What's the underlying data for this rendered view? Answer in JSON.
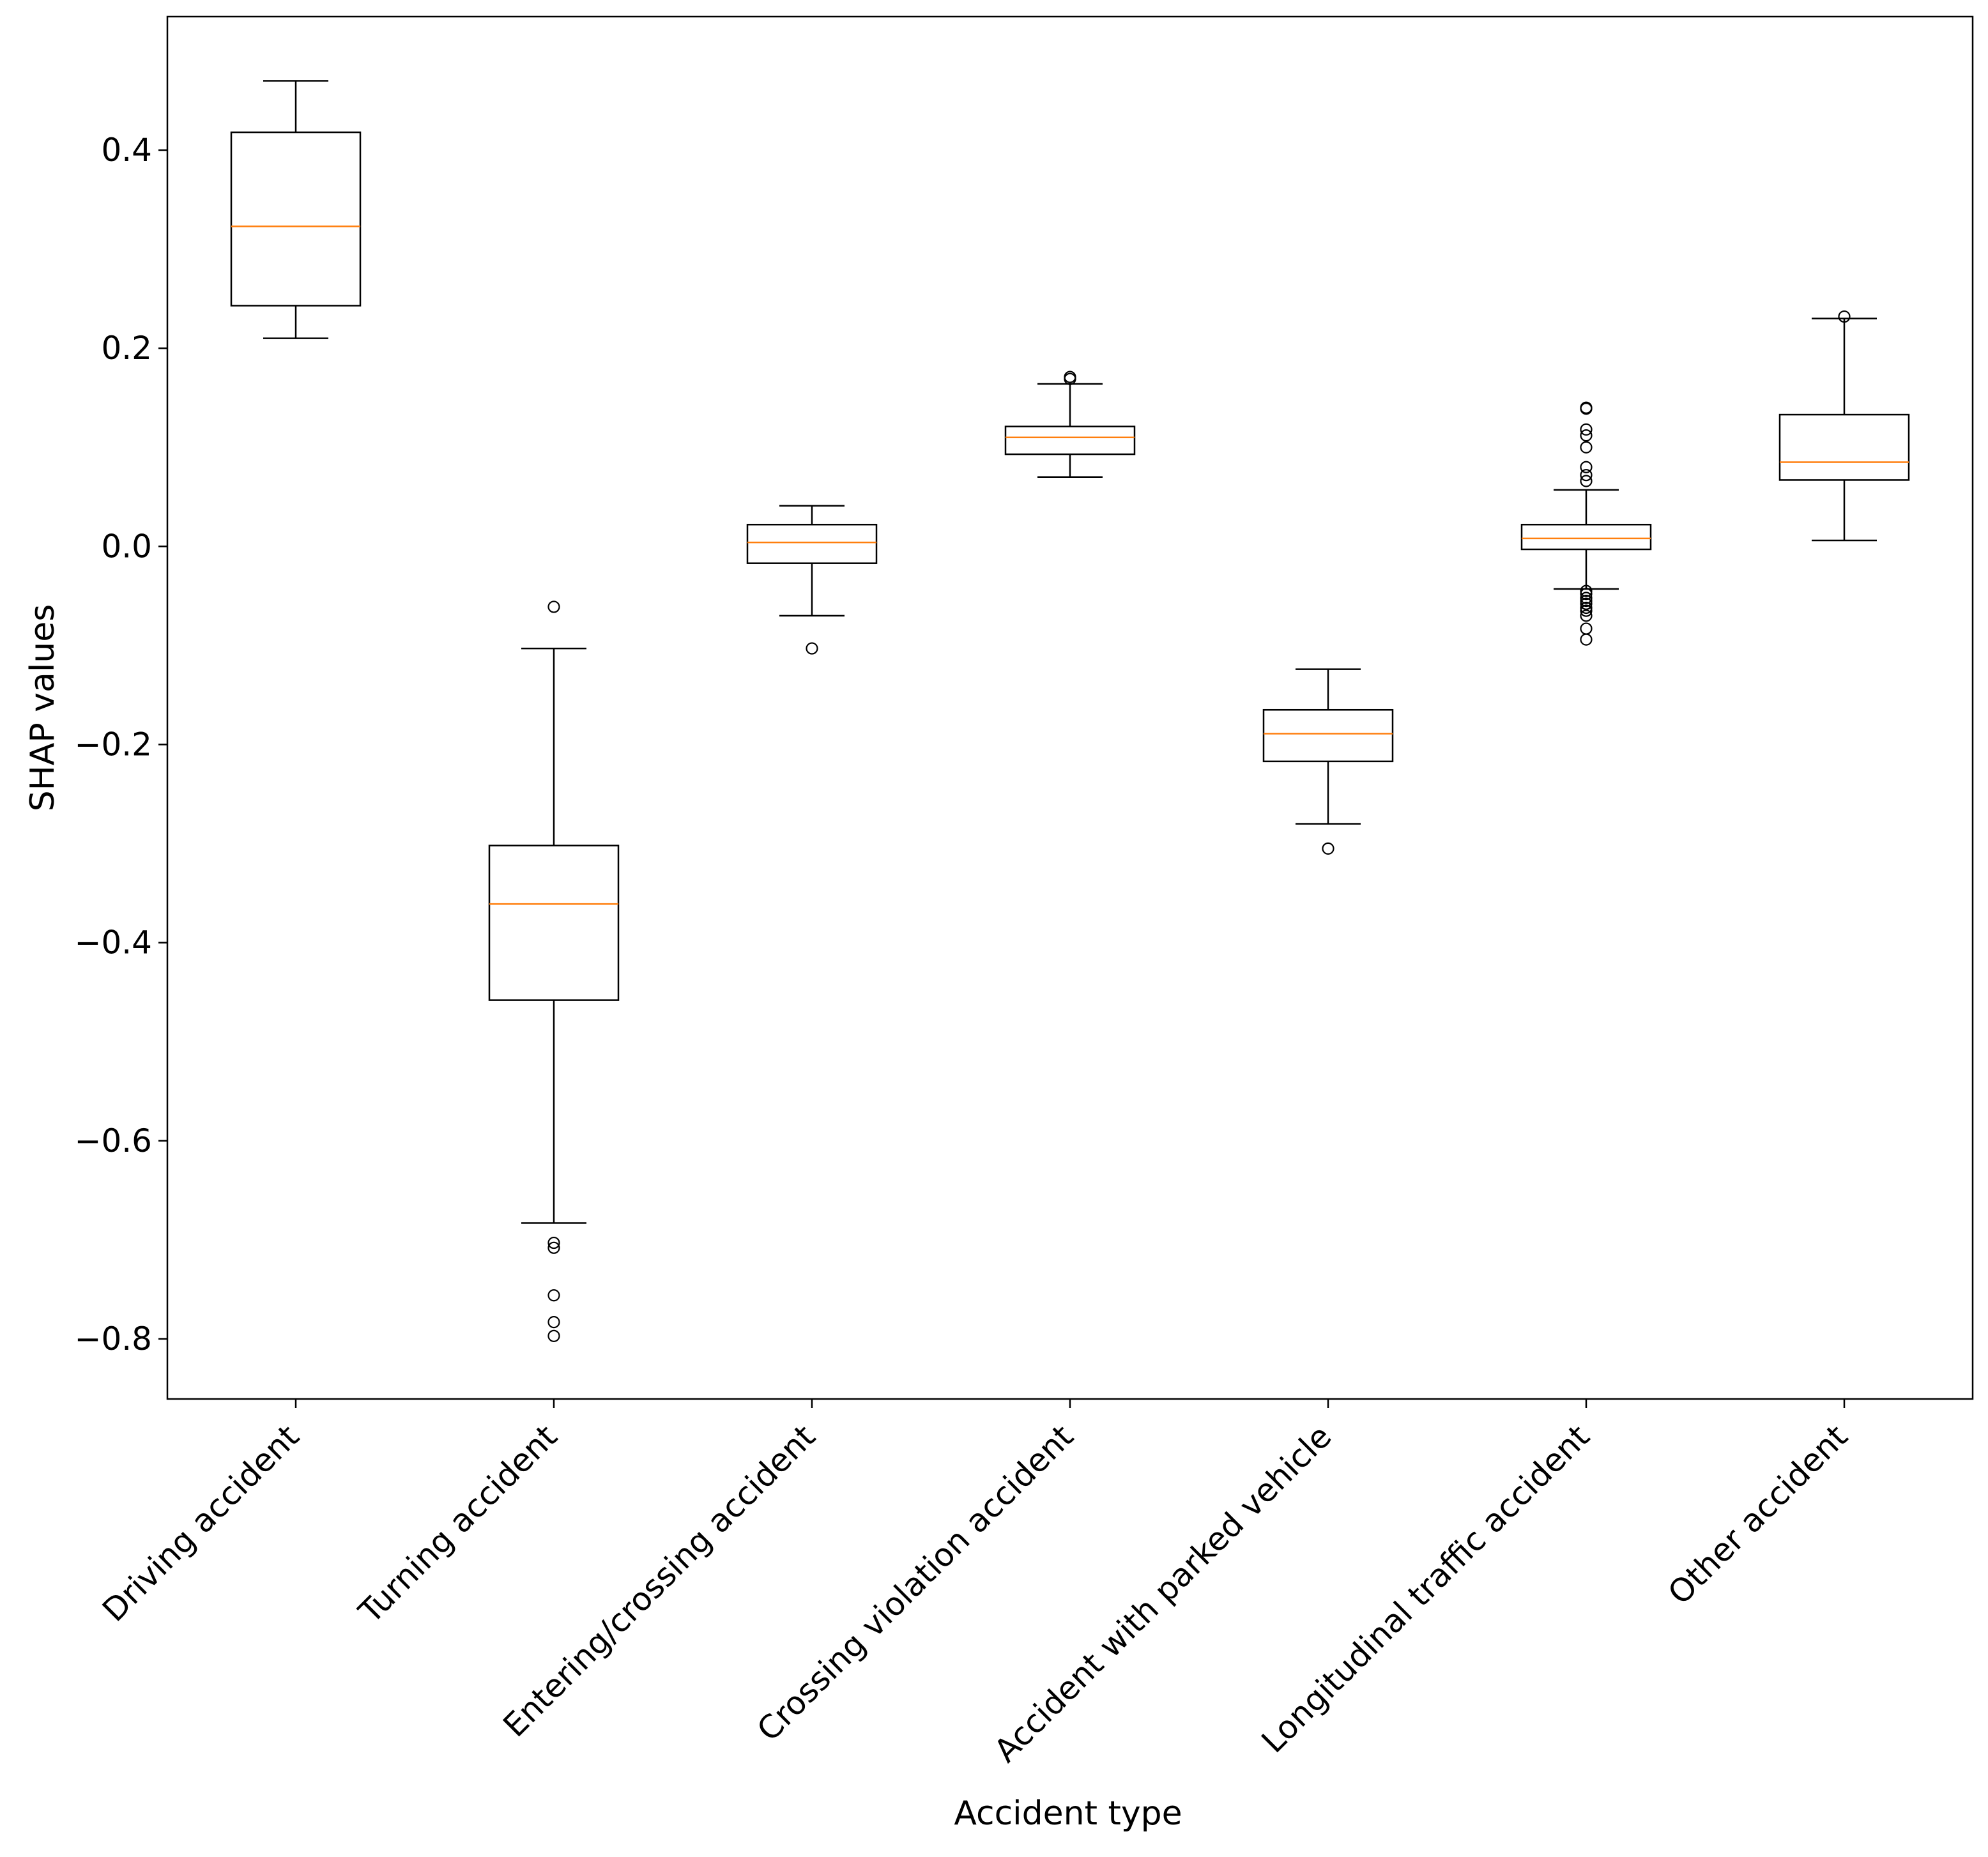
{
  "chart_data": {
    "type": "box",
    "title": "",
    "xlabel": "Accident type",
    "ylabel": "SHAP values",
    "ylim": [
      -0.86,
      0.54
    ],
    "yticks": [
      {
        "value": 0.4,
        "label": "0.4"
      },
      {
        "value": 0.2,
        "label": "0.2"
      },
      {
        "value": 0.0,
        "label": "0.0"
      },
      {
        "value": -0.2,
        "label": "−0.2"
      },
      {
        "value": -0.4,
        "label": "−0.4"
      },
      {
        "value": -0.6,
        "label": "−0.6"
      },
      {
        "value": -0.8,
        "label": "−0.8"
      }
    ],
    "grid": false,
    "colors": {
      "box": "#000000",
      "median": "#ff7f0e",
      "flier": "#000000"
    },
    "categories": [
      "Driving accident",
      "Turning accident",
      "Entering/crossing accident",
      "Crossing violation accident",
      "Accident with parked vehicle",
      "Longitudinal traffic accident",
      "Other accident"
    ],
    "boxes": [
      {
        "category": "Driving accident",
        "whisker_low": 0.21,
        "q1": 0.243,
        "median": 0.323,
        "q3": 0.418,
        "whisker_high": 0.47,
        "fliers": []
      },
      {
        "category": "Turning accident",
        "whisker_low": -0.683,
        "q1": -0.458,
        "median": -0.361,
        "q3": -0.302,
        "whisker_high": -0.103,
        "fliers": [
          -0.061,
          -0.703,
          -0.708,
          -0.756,
          -0.783,
          -0.797
        ]
      },
      {
        "category": "Entering/crossing accident",
        "whisker_low": -0.07,
        "q1": -0.017,
        "median": 0.004,
        "q3": 0.022,
        "whisker_high": 0.041,
        "fliers": [
          -0.103
        ]
      },
      {
        "category": "Crossing violation accident",
        "whisker_low": 0.07,
        "q1": 0.093,
        "median": 0.11,
        "q3": 0.121,
        "whisker_high": 0.164,
        "fliers": [
          0.169,
          0.171
        ]
      },
      {
        "category": "Accident with parked vehicle",
        "whisker_low": -0.28,
        "q1": -0.217,
        "median": -0.189,
        "q3": -0.165,
        "whisker_high": -0.124,
        "fliers": [
          -0.305
        ]
      },
      {
        "category": "Longitudinal traffic accident",
        "whisker_low": -0.043,
        "q1": -0.003,
        "median": 0.008,
        "q3": 0.022,
        "whisker_high": 0.057,
        "fliers": [
          0.139,
          0.14,
          0.118,
          0.112,
          0.1,
          0.08,
          0.072,
          0.066,
          -0.045,
          -0.048,
          -0.052,
          -0.055,
          -0.058,
          -0.062,
          -0.065,
          -0.07,
          -0.083,
          -0.094
        ]
      },
      {
        "category": "Other accident",
        "whisker_low": 0.006,
        "q1": 0.067,
        "median": 0.085,
        "q3": 0.133,
        "whisker_high": 0.23,
        "fliers": [
          0.232
        ]
      }
    ]
  }
}
